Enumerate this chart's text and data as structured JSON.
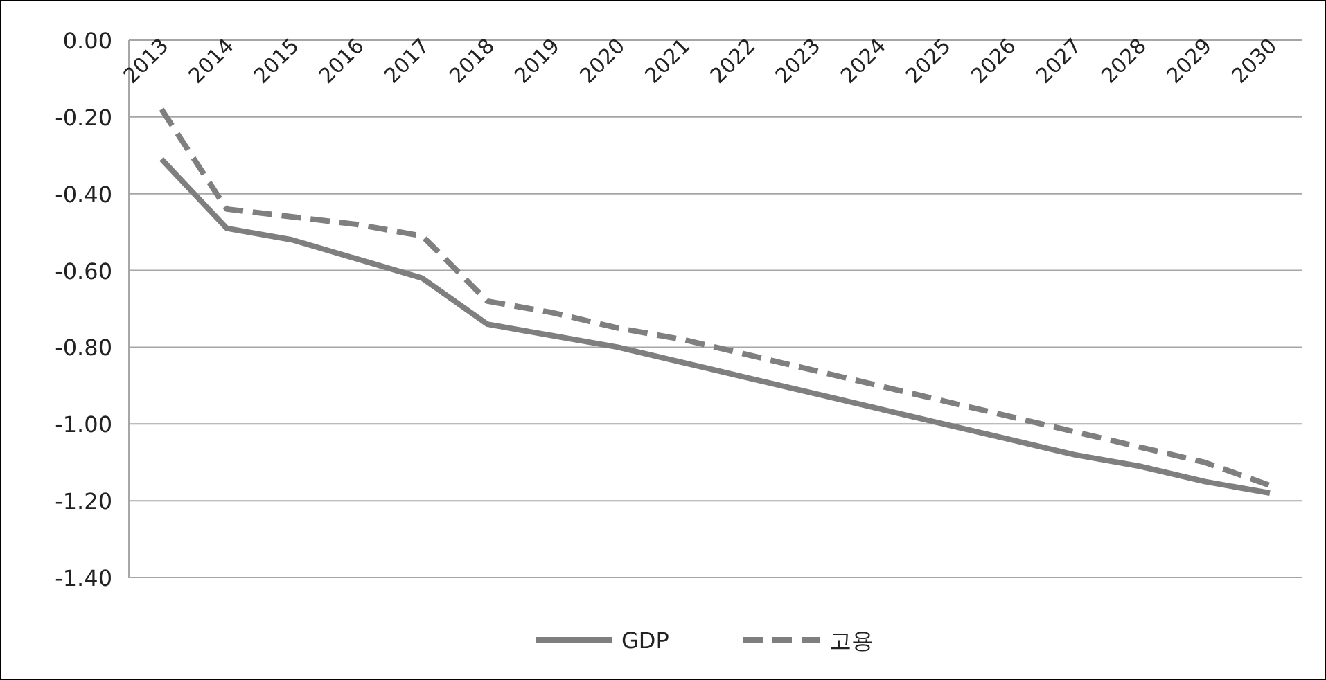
{
  "chart_data": {
    "type": "line",
    "categories": [
      "2013",
      "2014",
      "2015",
      "2016",
      "2017",
      "2018",
      "2019",
      "2020",
      "2021",
      "2022",
      "2023",
      "2024",
      "2025",
      "2026",
      "2027",
      "2028",
      "2029",
      "2030"
    ],
    "series": [
      {
        "name": "GDP",
        "color": "#7f7f7f",
        "line_style": "solid",
        "values": [
          -0.31,
          -0.49,
          -0.52,
          -0.57,
          -0.62,
          -0.74,
          -0.77,
          -0.8,
          -0.84,
          -0.88,
          -0.92,
          -0.96,
          -1.0,
          -1.04,
          -1.08,
          -1.11,
          -1.15,
          -1.18
        ]
      },
      {
        "name": "고용",
        "color": "#7f7f7f",
        "line_style": "dashed",
        "values": [
          -0.18,
          -0.44,
          -0.46,
          -0.48,
          -0.51,
          -0.68,
          -0.71,
          -0.75,
          -0.78,
          -0.82,
          -0.86,
          -0.9,
          -0.94,
          -0.98,
          -1.02,
          -1.06,
          -1.1,
          -1.16
        ]
      }
    ],
    "ylim": [
      -1.4,
      0
    ],
    "yticks": [
      {
        "value": 0,
        "label": "0.00"
      },
      {
        "value": -0.2,
        "label": "-0.20"
      },
      {
        "value": -0.4,
        "label": "-0.40"
      },
      {
        "value": -0.6,
        "label": "-0.60"
      },
      {
        "value": -0.8,
        "label": "-0.80"
      },
      {
        "value": -1.0,
        "label": "-1.00"
      },
      {
        "value": -1.2,
        "label": "-1.20"
      },
      {
        "value": -1.4,
        "label": "-1.40"
      }
    ],
    "grid": "y",
    "legend": "bottom",
    "marker": "none"
  }
}
